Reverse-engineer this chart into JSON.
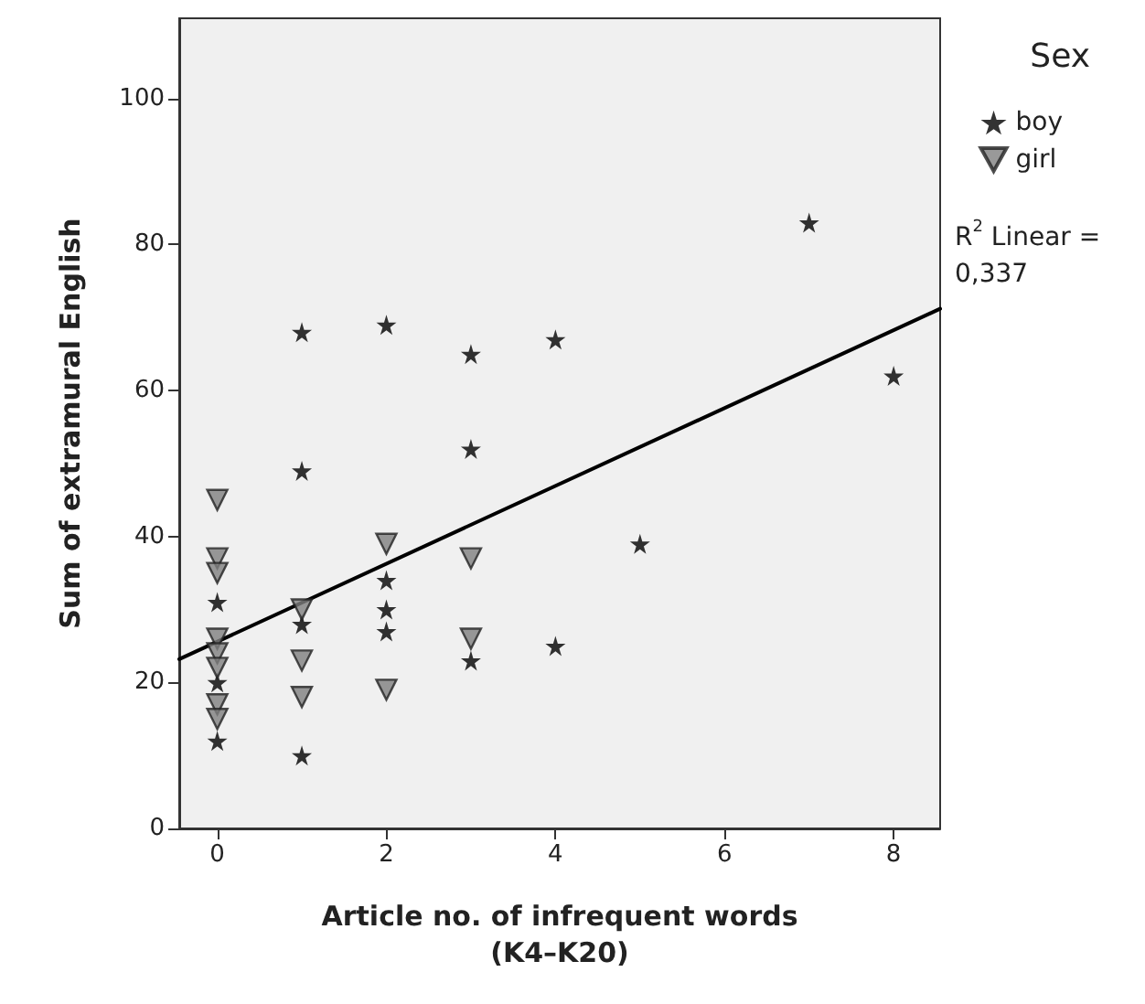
{
  "chart_data": {
    "type": "scatter",
    "xlabel": "Article no. of infrequent words\n(K4–K20)",
    "ylabel": "Sum of extramural English",
    "legend_title": "Sex",
    "annotations": [
      "R$^{2}$ Linear =\n0,337"
    ],
    "xlim": [
      -0.45,
      8.55
    ],
    "ylim": [
      0,
      111
    ],
    "xticks": [
      0,
      2,
      4,
      6,
      8
    ],
    "yticks": [
      0,
      20,
      40,
      60,
      80,
      100
    ],
    "grid": false,
    "legend": "top right",
    "series": [
      {
        "name": "boy",
        "color": "#000000",
        "marker": "star",
        "x": [
          0,
          0,
          0,
          1,
          1,
          1,
          1,
          2,
          2,
          2,
          2,
          3,
          3,
          3,
          4,
          4,
          5,
          7,
          8
        ],
        "values": [
          31,
          20,
          12,
          68,
          49,
          28,
          10,
          69,
          34,
          30,
          27,
          65,
          52,
          23,
          67,
          25,
          39,
          83,
          62
        ]
      },
      {
        "name": "girl",
        "color": "#808080",
        "marker": "triangle",
        "x": [
          0,
          0,
          0,
          0,
          0,
          0,
          0,
          0,
          1,
          1,
          1,
          2,
          2,
          3,
          3
        ],
        "values": [
          45,
          37,
          35,
          26,
          24,
          22,
          17,
          15,
          30,
          23,
          18,
          39,
          19,
          37,
          26
        ]
      },
      {
        "type": "line",
        "color": "#000000",
        "marker": "none",
        "line_style": "solid",
        "x": [
          -0.45,
          8.55
        ],
        "values": [
          23.2,
          71.2
        ]
      }
    ]
  }
}
